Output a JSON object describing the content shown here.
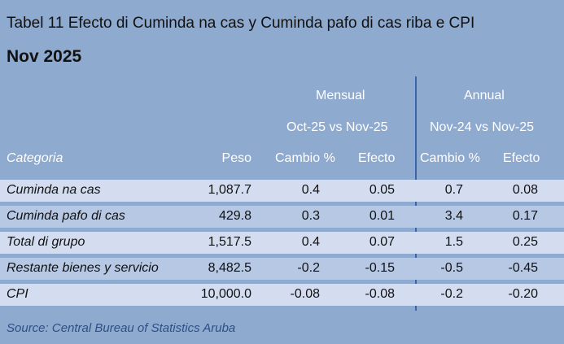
{
  "title": "Tabel 11 Efecto di Cuminda na cas y Cuminda pafo di cas riba e CPI",
  "subtitle": "Nov 2025",
  "groups": {
    "mensual": {
      "label": "Mensual",
      "period": "Oct-25 vs Nov-25"
    },
    "annual": {
      "label": "Annual",
      "period": "Nov-24 vs Nov-25"
    }
  },
  "columns": {
    "categoria": "Categoria",
    "peso": "Peso",
    "cambio_m": "Cambio %",
    "efecto_m": "Efecto",
    "cambio_a": "Cambio %",
    "efecto_a": "Efecto"
  },
  "rows": [
    {
      "categoria": "Cuminda na cas",
      "peso": "1,087.7",
      "cambio_m": "0.4",
      "efecto_m": "0.05",
      "cambio_a": "0.7",
      "efecto_a": "0.08"
    },
    {
      "categoria": "Cuminda pafo di cas",
      "peso": "429.8",
      "cambio_m": "0.3",
      "efecto_m": "0.01",
      "cambio_a": "3.4",
      "efecto_a": "0.17"
    },
    {
      "categoria": "Total di grupo",
      "peso": "1,517.5",
      "cambio_m": "0.4",
      "efecto_m": "0.07",
      "cambio_a": "1.5",
      "efecto_a": "0.25"
    },
    {
      "categoria": "Restante bienes y servicio",
      "peso": "8,482.5",
      "cambio_m": "-0.2",
      "efecto_m": "-0.15",
      "cambio_a": "-0.5",
      "efecto_a": "-0.45"
    },
    {
      "categoria": "CPI",
      "peso": "10,000.0",
      "cambio_m": "-0.08",
      "efecto_m": "-0.08",
      "cambio_a": "-0.2",
      "efecto_a": "-0.20"
    }
  ],
  "source": "Source: Central Bureau of Statistics Aruba",
  "colors": {
    "background": "#8eaacf",
    "row_light": "#d3ddef",
    "row_mid": "#b7c8e4",
    "header_text": "#ffffff",
    "divider": "#3d64a8",
    "source_text": "#2e4f86"
  }
}
